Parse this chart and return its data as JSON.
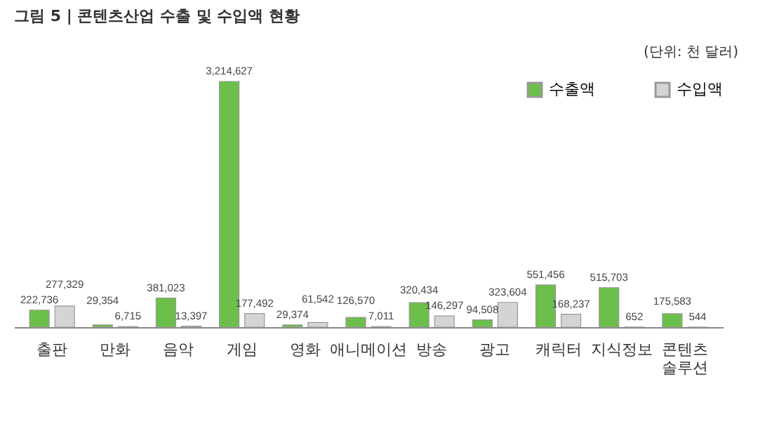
{
  "chart_data": {
    "type": "bar",
    "title": "그림 5 | 콘텐츠산업 수출 및 수입액 현황",
    "annotations": [
      "(단위: 천 달러)"
    ],
    "categories": [
      "출판",
      "만화",
      "음악",
      "게임",
      "영화",
      "애니메이션",
      "방송",
      "광고",
      "캐릭터",
      "지식정보",
      "콘텐츠 솔루션"
    ],
    "series": [
      {
        "name": "수출액",
        "color": "#6cbf4a",
        "values": [
          222736,
          29354,
          381023,
          3214627,
          29374,
          126570,
          320434,
          94508,
          551456,
          515703,
          175583
        ],
        "value_labels": [
          "222,736",
          "29,354",
          "381,023",
          "3,214,627",
          "29,374",
          "126,570",
          "320,434",
          "94,508",
          "551,456",
          "515,703",
          "175,583"
        ]
      },
      {
        "name": "수입액",
        "color": "#d4d4d4",
        "values": [
          277329,
          6715,
          13397,
          177492,
          61542,
          7011,
          146297,
          323604,
          168237,
          652,
          544
        ],
        "value_labels": [
          "277,329",
          "6,715",
          "13,397",
          "177,492",
          "61,542",
          "7,011",
          "146,297",
          "323,604",
          "168,237",
          "652",
          "544"
        ]
      }
    ],
    "legend": "top right"
  }
}
